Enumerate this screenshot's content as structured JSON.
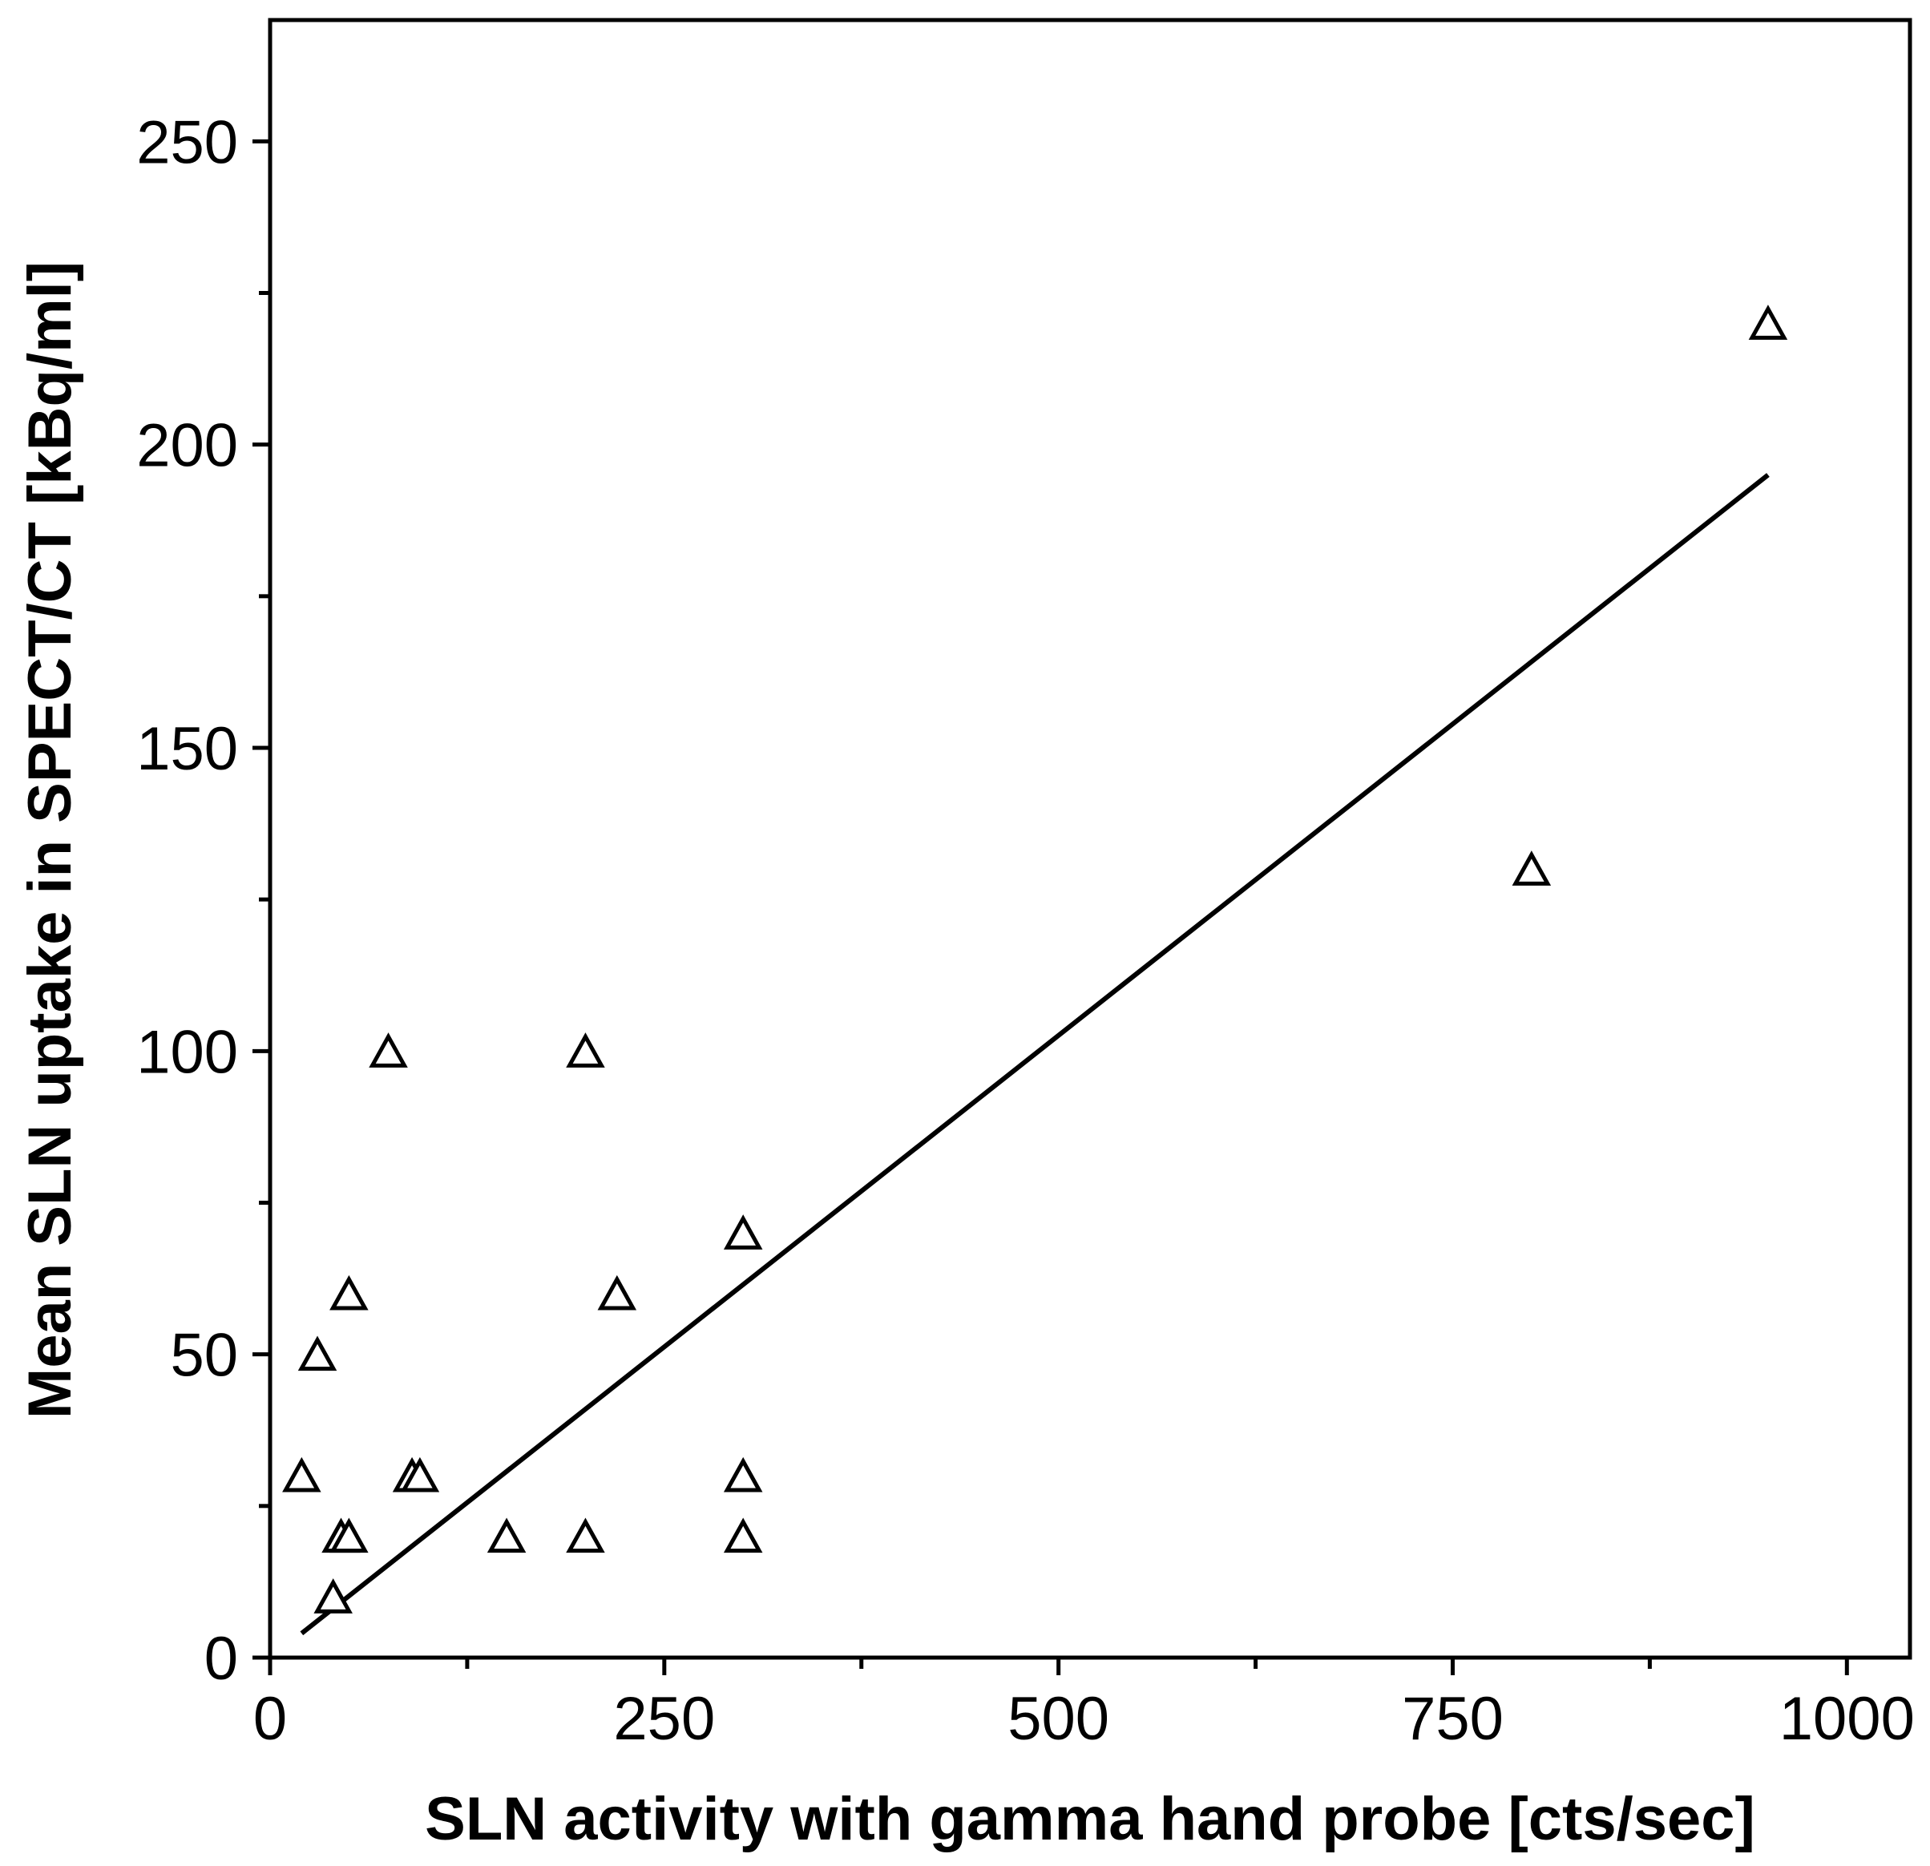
{
  "chart_data": {
    "type": "scatter",
    "title": "",
    "xlabel": "SLN activity with gamma hand probe [cts/sec]",
    "ylabel": "Mean SLN uptake in SPECT/CT [kBq/ml]",
    "xlim": [
      0,
      1040
    ],
    "ylim": [
      0,
      270
    ],
    "x_ticks": [
      0,
      250,
      500,
      750,
      1000
    ],
    "x_minor_ticks": [
      125,
      375,
      625,
      875
    ],
    "y_ticks": [
      0,
      50,
      100,
      150,
      200,
      250
    ],
    "y_minor_ticks": [
      25,
      75,
      125,
      175,
      225
    ],
    "x_tick_labels": [
      "0",
      "250",
      "500",
      "750",
      "1000"
    ],
    "y_tick_labels": [
      "0",
      "50",
      "100",
      "150",
      "200",
      "250"
    ],
    "grid": false,
    "marker": "open-triangle",
    "points": [
      {
        "x": 20,
        "y": 30
      },
      {
        "x": 30,
        "y": 50
      },
      {
        "x": 40,
        "y": 10
      },
      {
        "x": 45,
        "y": 20
      },
      {
        "x": 50,
        "y": 20
      },
      {
        "x": 50,
        "y": 60
      },
      {
        "x": 75,
        "y": 100
      },
      {
        "x": 90,
        "y": 30
      },
      {
        "x": 95,
        "y": 30
      },
      {
        "x": 150,
        "y": 20
      },
      {
        "x": 200,
        "y": 20
      },
      {
        "x": 200,
        "y": 100
      },
      {
        "x": 220,
        "y": 60
      },
      {
        "x": 300,
        "y": 70
      },
      {
        "x": 300,
        "y": 30
      },
      {
        "x": 300,
        "y": 20
      },
      {
        "x": 800,
        "y": 130
      },
      {
        "x": 950,
        "y": 220
      }
    ],
    "fit_line": {
      "x": [
        20,
        950
      ],
      "y": [
        4,
        195
      ]
    }
  }
}
